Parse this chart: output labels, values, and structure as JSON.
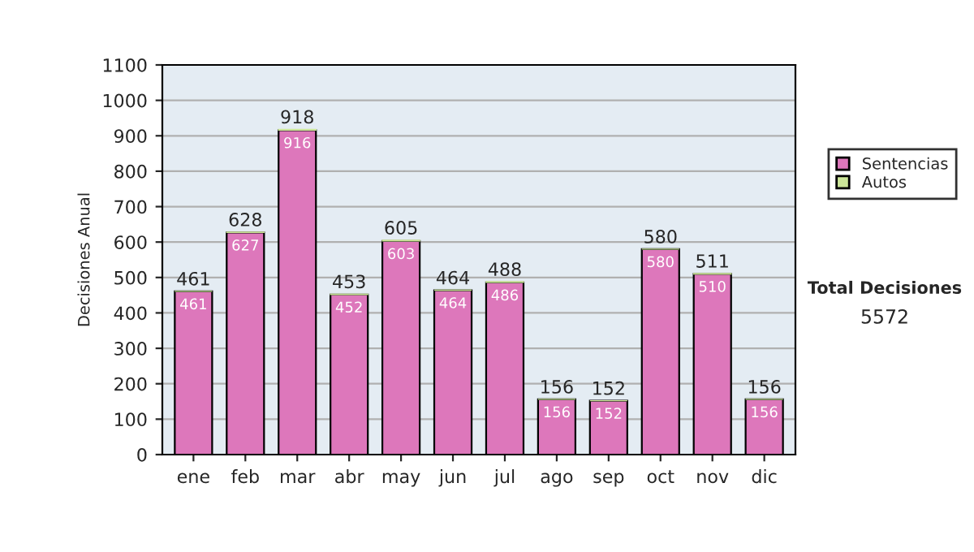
{
  "chart_data": {
    "type": "bar",
    "stacked": true,
    "ylabel": "Decisiones Anual",
    "categories": [
      "ene",
      "feb",
      "mar",
      "abr",
      "may",
      "jun",
      "jul",
      "ago",
      "sep",
      "oct",
      "nov",
      "dic"
    ],
    "series": [
      {
        "name": "Sentencias",
        "color": "#dd77bb",
        "values": [
          461,
          627,
          916,
          452,
          603,
          464,
          486,
          156,
          152,
          580,
          510,
          156
        ],
        "value_labels": [
          "461",
          "627",
          "916",
          "452",
          "603",
          "464",
          "486",
          "156",
          "152",
          "580",
          "510",
          "156"
        ]
      },
      {
        "name": "Autos",
        "color": "#cce699",
        "values": [
          0,
          1,
          2,
          1,
          2,
          0,
          2,
          0,
          0,
          0,
          1,
          0
        ]
      }
    ],
    "totals": [
      "461",
      "628",
      "918",
      "453",
      "605",
      "464",
      "488",
      "156",
      "152",
      "580",
      "511",
      "156"
    ],
    "ylim": [
      0,
      1100
    ],
    "yticks": [
      0,
      100,
      200,
      300,
      400,
      500,
      600,
      700,
      800,
      900,
      1000,
      1100
    ],
    "grid": "y",
    "legend": "right",
    "annotations": [
      "Total Decisiones",
      "5572"
    ]
  }
}
